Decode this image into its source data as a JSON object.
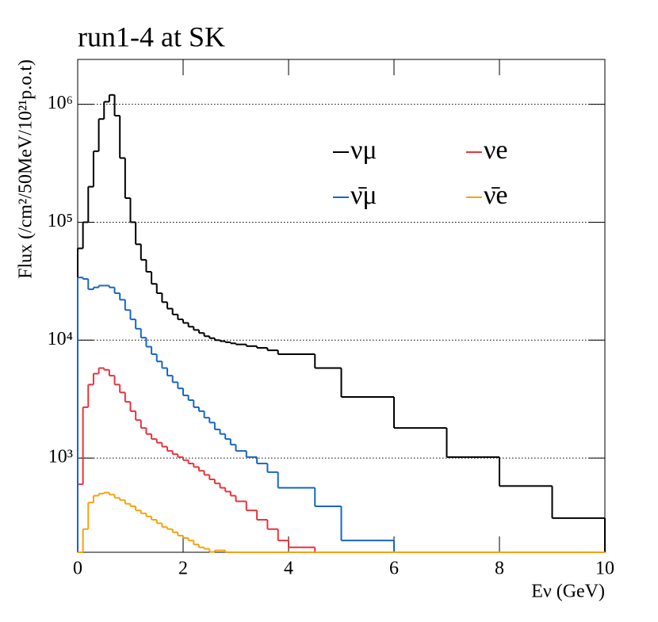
{
  "chart_data": {
    "type": "histogram",
    "title": "run1-4 at SK",
    "xlabel": "Eν (GeV)",
    "ylabel": "Flux (/cm²/50MeV/10²¹p.o.t)",
    "log_y": true,
    "grid": true,
    "bins": [
      0,
      0.1,
      0.2,
      0.3,
      0.4,
      0.5,
      0.6,
      0.7,
      0.8,
      0.9,
      1.0,
      1.1,
      1.2,
      1.3,
      1.4,
      1.5,
      1.6,
      1.7,
      1.8,
      1.9,
      2.0,
      2.1,
      2.2,
      2.3,
      2.4,
      2.5,
      2.6,
      2.7,
      2.8,
      2.9,
      3.0,
      3.2,
      3.4,
      3.6,
      3.8,
      4.0,
      4.5,
      5,
      6,
      7,
      8,
      9,
      10
    ],
    "xlim": [
      0,
      10
    ],
    "xticks": [
      0,
      2,
      4,
      6,
      8,
      10
    ],
    "ylim": [
      159,
      2400000
    ],
    "yticks": [
      {
        "value": 1000,
        "label": "10³"
      },
      {
        "value": 10000,
        "label": "10⁴"
      },
      {
        "value": 100000,
        "label": "10⁵"
      },
      {
        "value": 1000000,
        "label": "10⁶"
      }
    ],
    "series": [
      {
        "name": "νμ",
        "color": "#000000",
        "values": [
          60000,
          100000,
          200000,
          400000,
          750000,
          1050000,
          1200000,
          800000,
          350000,
          160000,
          100000,
          65000,
          48000,
          38000,
          30000,
          25000,
          21000,
          18500,
          16500,
          15000,
          14000,
          13000,
          12200,
          11500,
          10800,
          10400,
          10000,
          9800,
          9600,
          9400,
          9200,
          8900,
          8600,
          8200,
          7600,
          7600,
          5800,
          3300,
          1800,
          1020,
          580,
          310
        ]
      },
      {
        "name": "νe",
        "color": "#e8343c",
        "values": [
          600,
          2700,
          4200,
          5200,
          5800,
          5600,
          5000,
          4200,
          3600,
          3000,
          2500,
          2100,
          1800,
          1600,
          1450,
          1350,
          1250,
          1150,
          1080,
          1020,
          960,
          900,
          840,
          780,
          720,
          660,
          610,
          560,
          520,
          480,
          430,
          360,
          300,
          250,
          200,
          175,
          100,
          100,
          100,
          100,
          100,
          100
        ]
      },
      {
        "name": "ν̄μ",
        "color": "#1866c4",
        "values": [
          34000,
          33000,
          27000,
          28000,
          29000,
          29000,
          28000,
          25000,
          22000,
          18000,
          15000,
          12500,
          10500,
          8800,
          7600,
          6600,
          5800,
          5000,
          4400,
          3900,
          3400,
          3100,
          2700,
          2500,
          2200,
          2000,
          1750,
          1600,
          1450,
          1300,
          1150,
          1020,
          900,
          760,
          560,
          560,
          390,
          200,
          100,
          100,
          100,
          100
        ]
      },
      {
        "name": "ν̄e",
        "color": "#f5a30f",
        "values": [
          100,
          250,
          420,
          480,
          500,
          510,
          490,
          460,
          440,
          410,
          390,
          360,
          340,
          320,
          300,
          280,
          260,
          250,
          235,
          220,
          210,
          200,
          185,
          175,
          170,
          160,
          165,
          165,
          100,
          100,
          100,
          100,
          100,
          100,
          100,
          100,
          100,
          100,
          100,
          100,
          100,
          100
        ]
      }
    ]
  }
}
